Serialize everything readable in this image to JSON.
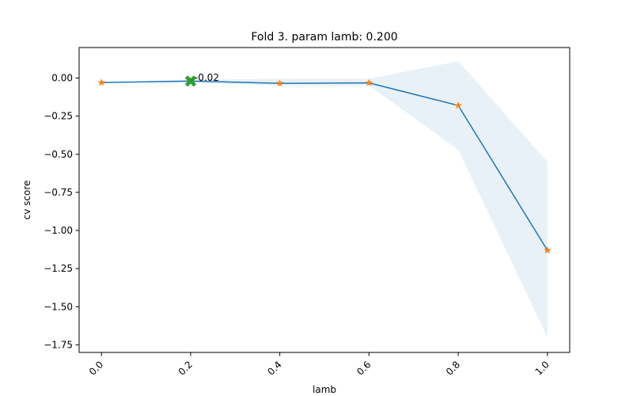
{
  "chart_data": {
    "type": "line",
    "title": "Fold 3. param lamb: 0.200",
    "xlabel": "lamb",
    "ylabel": "cv score",
    "xlim": [
      -0.05,
      1.05
    ],
    "ylim": [
      -1.8,
      0.2
    ],
    "xticks": [
      0.0,
      0.2,
      0.4,
      0.6,
      0.8,
      1.0
    ],
    "xtick_labels": [
      "0.0",
      "0.2",
      "0.4",
      "0.6",
      "0.8",
      "1.0"
    ],
    "xtick_rotation": 45,
    "yticks": [
      0.0,
      -0.25,
      -0.5,
      -0.75,
      -1.0,
      -1.25,
      -1.5,
      -1.75
    ],
    "ytick_labels": [
      "0.00",
      "−0.25",
      "−0.50",
      "−0.75",
      "−1.00",
      "−1.25",
      "−1.50",
      "−1.75"
    ],
    "grid": false,
    "x": [
      0.0,
      0.2,
      0.4,
      0.6,
      0.8,
      1.0
    ],
    "series": [
      {
        "values": [
          -0.03,
          -0.02,
          -0.035,
          -0.032,
          -0.18,
          -1.13
        ],
        "color": "#1f77b4",
        "marker": "star",
        "marker_color": "#ff7f0e"
      }
    ],
    "band": {
      "lower": [
        -0.03,
        -0.03,
        -0.05,
        -0.05,
        -0.47,
        -1.7
      ],
      "upper": [
        -0.03,
        -0.01,
        -0.005,
        -0.005,
        0.11,
        -0.55
      ],
      "color": "#1f77b4",
      "opacity": 0.1
    },
    "best_point": {
      "x": 0.2,
      "y": -0.02,
      "marker": "X",
      "color": "#2ca02c",
      "label": "-0.02"
    }
  }
}
